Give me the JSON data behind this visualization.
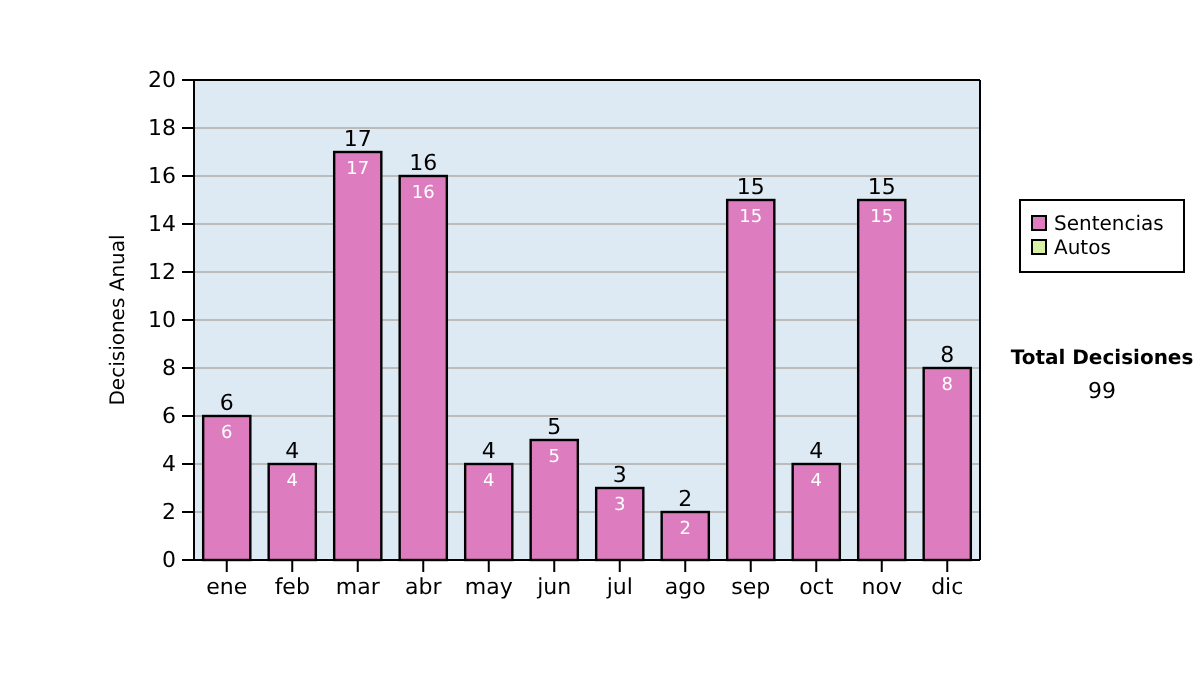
{
  "chart_data": {
    "type": "bar",
    "ylabel": "Decisiones Anual",
    "categories": [
      "ene",
      "feb",
      "mar",
      "abr",
      "may",
      "jun",
      "jul",
      "ago",
      "sep",
      "oct",
      "nov",
      "dic"
    ],
    "stacked": true,
    "series": [
      {
        "name": "Sentencias",
        "color": "#dd7dbf",
        "values": [
          6,
          4,
          17,
          16,
          4,
          5,
          3,
          2,
          15,
          4,
          15,
          8
        ],
        "value_labels": [
          "6",
          "4",
          "17",
          "16",
          "4",
          "5",
          "3",
          "2",
          "15",
          "4",
          "15",
          "8"
        ]
      },
      {
        "name": "Autos",
        "color": "#d9efa5",
        "values": [
          0,
          0,
          0,
          0,
          0,
          0,
          0,
          0,
          0,
          0,
          0,
          0
        ]
      }
    ],
    "totals": [
      "6",
      "4",
      "17",
      "16",
      "4",
      "5",
      "3",
      "2",
      "15",
      "4",
      "15",
      "8"
    ],
    "ylim": [
      0,
      20
    ],
    "yticks": [
      0,
      2,
      4,
      6,
      8,
      10,
      12,
      14,
      16,
      18,
      20
    ],
    "grid": "y",
    "legend": "right",
    "annotations": [
      "Total Decisiones",
      "99"
    ]
  }
}
